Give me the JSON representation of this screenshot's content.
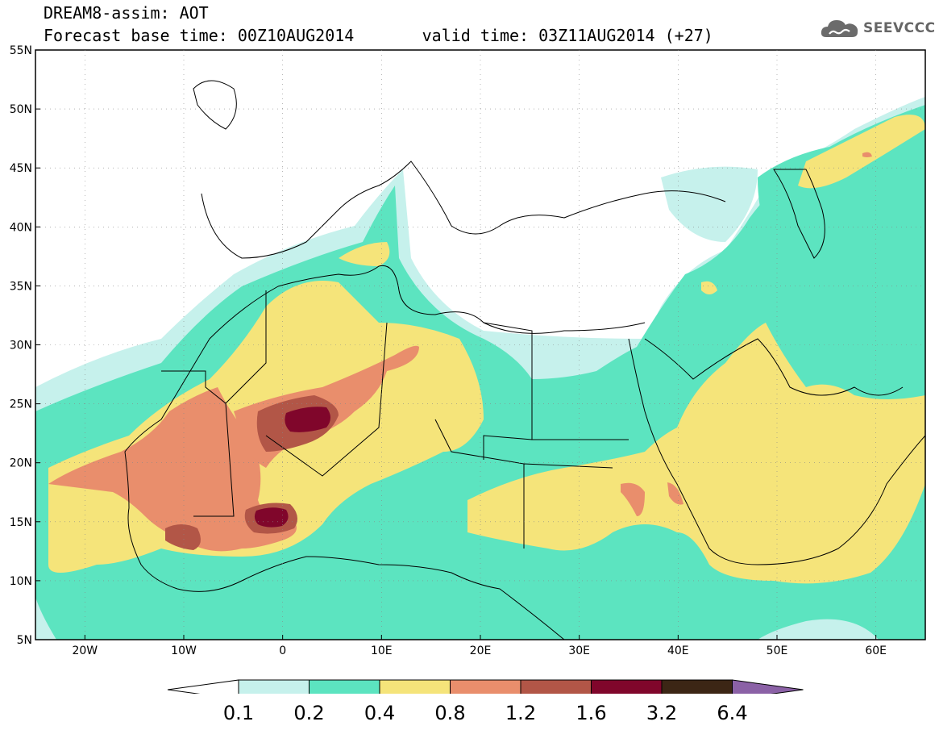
{
  "header": {
    "title": "DREAM8-assim: AOT",
    "base_time_label": "Forecast base time: 00Z10AUG2014",
    "valid_time_label": "valid time: 03Z11AUG2014 (+27)"
  },
  "logo": {
    "text": "SEEVCCC",
    "icon": "cloud-logo-icon"
  },
  "map": {
    "lon_range": [
      -25,
      65
    ],
    "lat_range": [
      5,
      55
    ],
    "lon_ticks": [
      {
        "value": -20,
        "label": "20W"
      },
      {
        "value": -10,
        "label": "10W"
      },
      {
        "value": 0,
        "label": "0"
      },
      {
        "value": 10,
        "label": "10E"
      },
      {
        "value": 20,
        "label": "20E"
      },
      {
        "value": 30,
        "label": "30E"
      },
      {
        "value": 40,
        "label": "40E"
      },
      {
        "value": 50,
        "label": "50E"
      },
      {
        "value": 60,
        "label": "60E"
      }
    ],
    "lat_ticks": [
      {
        "value": 55,
        "label": "55N"
      },
      {
        "value": 50,
        "label": "50N"
      },
      {
        "value": 45,
        "label": "45N"
      },
      {
        "value": 40,
        "label": "40N"
      },
      {
        "value": 35,
        "label": "35N"
      },
      {
        "value": 30,
        "label": "30N"
      },
      {
        "value": 25,
        "label": "25N"
      },
      {
        "value": 20,
        "label": "20N"
      },
      {
        "value": 15,
        "label": "15N"
      },
      {
        "value": 10,
        "label": "10N"
      },
      {
        "value": 5,
        "label": "5N"
      }
    ],
    "colors": {
      "c01": "#c6f1ec",
      "c02": "#5ce4c0",
      "c04": "#f5e47a",
      "c08": "#e98e6c",
      "c12": "#b25647",
      "c16": "#80062b",
      "c32": "#3c2615",
      "c64": "#8b61a6"
    }
  },
  "colorbar": {
    "labels": [
      "0.1",
      "0.2",
      "0.4",
      "0.8",
      "1.2",
      "1.6",
      "3.2",
      "6.4"
    ],
    "colors": [
      "#c6f1ec",
      "#5ce4c0",
      "#f5e47a",
      "#e98e6c",
      "#b25647",
      "#80062b",
      "#3c2615"
    ],
    "under_color": "#ffffff",
    "over_color": "#8b61a6"
  }
}
